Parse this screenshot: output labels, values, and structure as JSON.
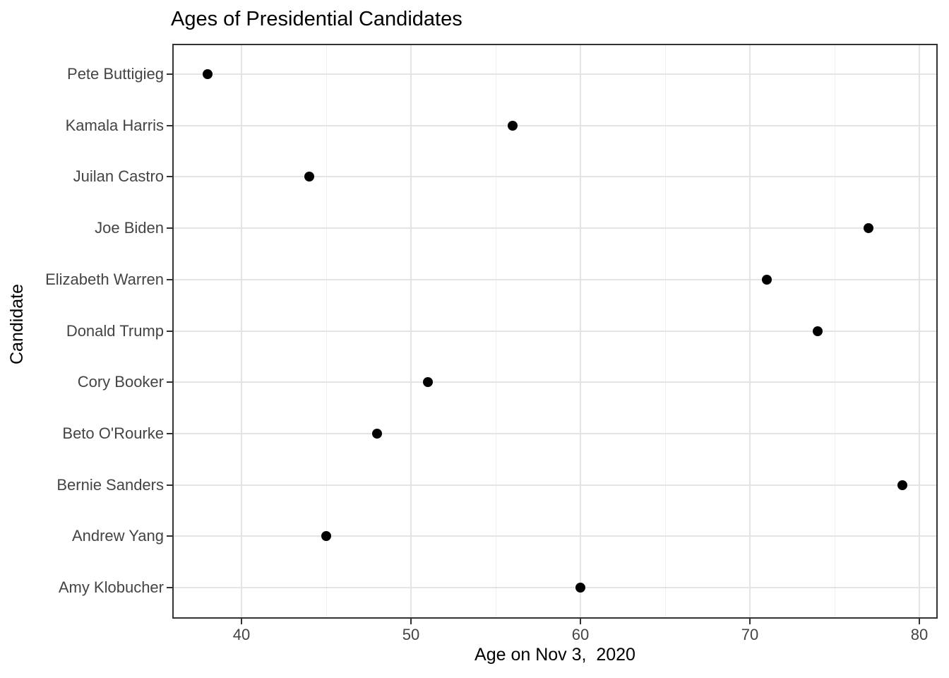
{
  "chart_data": {
    "type": "scatter",
    "title": "Ages of Presidential Candidates",
    "xlabel": "Age on Nov 3,  2020",
    "ylabel": "Candidate",
    "categories": [
      "Pete Buttigieg",
      "Kamala Harris",
      "Juilan Castro",
      "Joe Biden",
      "Elizabeth Warren",
      "Donald Trump",
      "Cory Booker",
      "Beto O'Rourke",
      "Bernie Sanders",
      "Andrew Yang",
      "Amy Klobucher"
    ],
    "values": [
      38,
      56,
      44,
      77,
      71,
      74,
      51,
      48,
      79,
      45,
      60
    ],
    "xlim": [
      36,
      81
    ],
    "x_ticks": [
      40,
      50,
      60,
      70,
      80
    ],
    "x_minor_ticks": [
      45,
      55,
      65,
      75
    ],
    "grid": "on",
    "legend": "none",
    "colors": {
      "point": "#000000",
      "grid_major": "#e4e4e4",
      "grid_minor": "#efefef",
      "panel_border": "#333333",
      "tick_mark": "#333333",
      "tick_label": "#444444",
      "title_text": "#000000",
      "background": "#ffffff"
    }
  }
}
